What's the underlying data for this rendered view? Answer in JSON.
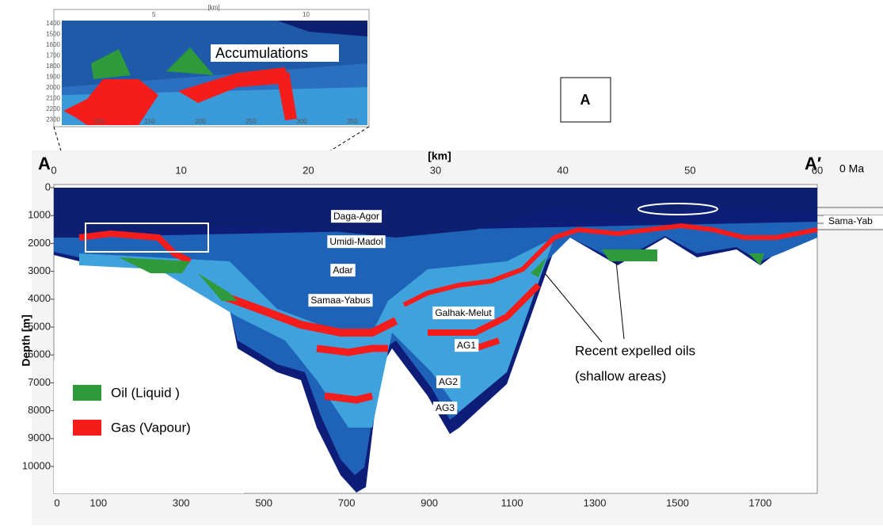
{
  "panel_label": "A",
  "inset": {
    "title": "Accumulations",
    "unit": "[km]",
    "top_ticks": [
      "5",
      "10"
    ],
    "left_ticks": [
      "1400",
      "1500",
      "1600",
      "1700",
      "1800",
      "1900",
      "2000",
      "2100",
      "2200",
      "2300"
    ],
    "bottom_ticks": [
      "100",
      "150",
      "200",
      "250",
      "300",
      "350"
    ]
  },
  "section": {
    "start_label": "A",
    "end_label": "A′",
    "age": "0 Ma",
    "top_axis_label": "[km]",
    "top_ticks": [
      0,
      10,
      20,
      30,
      40,
      50,
      60
    ],
    "y_label": "Depth [m]",
    "y_ticks": [
      0,
      1000,
      2000,
      3000,
      4000,
      5000,
      6000,
      7000,
      8000,
      9000,
      10000
    ],
    "bottom_ticks": [
      0,
      100,
      300,
      500,
      700,
      900,
      1100,
      1300,
      1500,
      1700
    ],
    "layers": [
      "Daga-Agor",
      "Umidi-Madol",
      "Adar",
      "Samaa-Yabus",
      "Galhak-Melut",
      "AG1",
      "AG2",
      "AG3"
    ],
    "side_label": "Sama-Yab",
    "annotation": [
      "Recent expelled oils",
      "(shallow areas)"
    ]
  },
  "legend": [
    {
      "label": "Oil (Liquid )",
      "color": "#2e9a3c"
    },
    {
      "label": "Gas (Vapour)",
      "color": "#f51c1c"
    }
  ]
}
